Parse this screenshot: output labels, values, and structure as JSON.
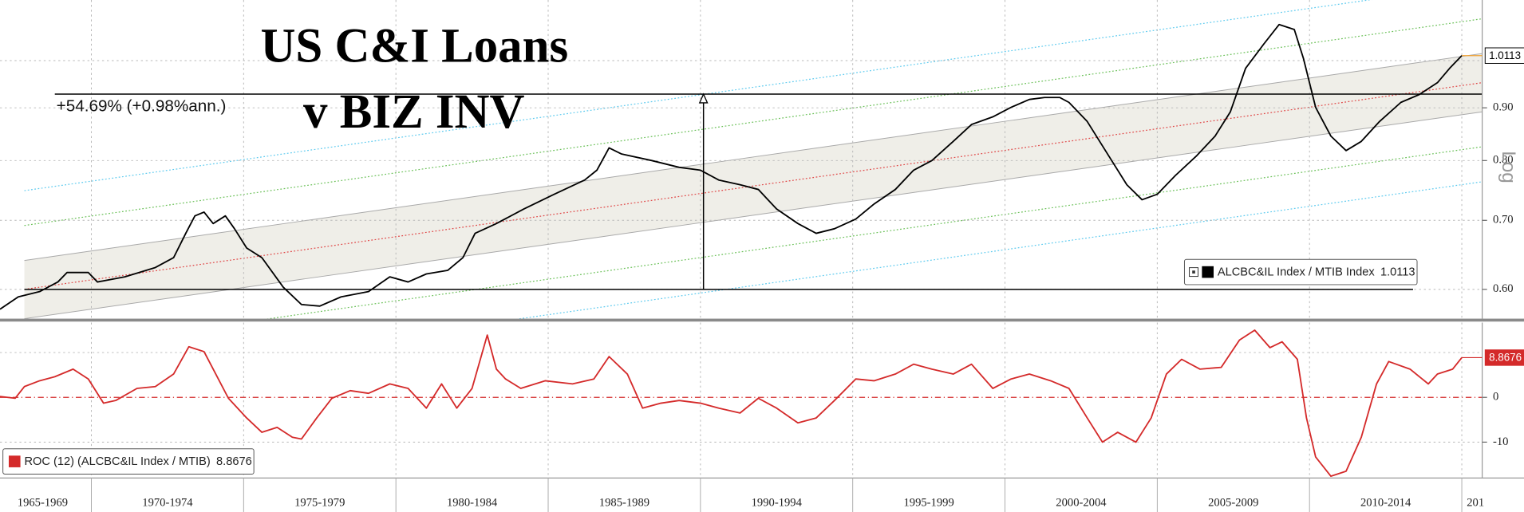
{
  "chart_data": [
    {
      "type": "line",
      "title": [
        "US C&I Loans",
        "v BIZ INV"
      ],
      "log": true,
      "yscale_label": "Log",
      "xlim": [
        1967,
        2015.67
      ],
      "ylim": [
        0.562,
        1.145
      ],
      "yticks": [
        {
          "value": 0.6,
          "label": "0.60"
        },
        {
          "value": 0.7,
          "label": "0.70"
        },
        {
          "value": 0.8,
          "label": "0.80"
        },
        {
          "value": 0.9,
          "label": "0.90"
        }
      ],
      "ygrid": [
        0.6,
        0.7,
        0.8,
        0.9,
        1.0
      ],
      "xgrid": [
        1970,
        1975,
        1980,
        1985,
        1990,
        1995,
        2000,
        2005,
        2010,
        2015
      ],
      "grid": true,
      "legend": "lower right",
      "x": [
        1967.0,
        1967.6,
        1968.3,
        1968.9,
        1969.2,
        1969.9,
        1970.2,
        1971.1,
        1972.1,
        1972.7,
        1973.1,
        1973.4,
        1973.7,
        1974.0,
        1974.4,
        1974.7,
        1975.1,
        1975.6,
        1976.3,
        1976.9,
        1977.5,
        1978.2,
        1979.1,
        1979.8,
        1980.4,
        1981.0,
        1981.7,
        1982.2,
        1982.6,
        1983.3,
        1984.2,
        1985.2,
        1986.2,
        1986.6,
        1987.0,
        1987.4,
        1988.4,
        1989.3,
        1990.0,
        1990.6,
        1991.3,
        1991.9,
        1992.5,
        1993.2,
        1993.8,
        1994.4,
        1995.1,
        1995.7,
        1996.4,
        1997.0,
        1997.6,
        1998.3,
        1998.9,
        1999.6,
        2000.2,
        2000.8,
        2001.3,
        2001.8,
        2002.1,
        2002.7,
        2003.4,
        2004.0,
        2004.5,
        2005.0,
        2005.6,
        2006.3,
        2006.9,
        2007.4,
        2007.9,
        2008.5,
        2009.0,
        2009.5,
        2009.8,
        2010.2,
        2010.7,
        2011.2,
        2011.7,
        2012.3,
        2013.0,
        2013.6,
        2014.2,
        2014.6,
        2015.0
      ],
      "series": [
        {
          "name": "ALCBC&IL Index / MTIB Index",
          "color": "#000000",
          "values": [
            0.574,
            0.59,
            0.597,
            0.61,
            0.623,
            0.623,
            0.61,
            0.617,
            0.63,
            0.644,
            0.68,
            0.707,
            0.713,
            0.695,
            0.707,
            0.687,
            0.658,
            0.644,
            0.603,
            0.58,
            0.578,
            0.59,
            0.597,
            0.617,
            0.61,
            0.621,
            0.626,
            0.644,
            0.68,
            0.695,
            0.718,
            0.742,
            0.766,
            0.783,
            0.823,
            0.812,
            0.8,
            0.788,
            0.783,
            0.766,
            0.758,
            0.75,
            0.718,
            0.695,
            0.68,
            0.687,
            0.702,
            0.726,
            0.75,
            0.783,
            0.8,
            0.835,
            0.867,
            0.882,
            0.901,
            0.917,
            0.921,
            0.921,
            0.911,
            0.873,
            0.809,
            0.758,
            0.733,
            0.742,
            0.774,
            0.809,
            0.845,
            0.892,
            0.983,
            1.038,
            1.084,
            1.072,
            1.005,
            0.901,
            0.845,
            0.818,
            0.835,
            0.873,
            0.911,
            0.927,
            0.952,
            0.983,
            1.0113
          ]
        }
      ],
      "channel": {
        "x": [
          1967.8,
          2015.67
        ],
        "center": {
          "color": "#e04848",
          "values": [
            0.6,
            0.952
          ]
        },
        "band": {
          "color": "#efeee8",
          "edge": "#a9a9a9",
          "upper": [
            0.64,
            1.016
          ],
          "lower": [
            0.562,
            0.892
          ]
        },
        "lines": [
          {
            "color": "#6cc15a",
            "values": [
              0.692,
              1.098
            ]
          },
          {
            "color": "#6cc15a",
            "values": [
              0.52,
              0.825
            ]
          },
          {
            "color": "#5fcbef",
            "values": [
              0.748,
              1.187
            ]
          },
          {
            "color": "#5fcbef",
            "values": [
              0.48,
              0.763
            ]
          }
        ]
      },
      "hlines": [
        {
          "value": 0.928,
          "x": [
            1968.8,
            2015.67
          ]
        },
        {
          "value": 0.6,
          "x": [
            1967.8,
            2013.4
          ]
        }
      ],
      "measure": {
        "x": 1990.1,
        "from": 0.6,
        "to": 0.928,
        "label": "+54.69% (+0.98%ann.)"
      },
      "tag_color": "#f0a030"
    },
    {
      "type": "line",
      "xlim": [
        1967,
        2015.67
      ],
      "ylim": [
        -18,
        16.7
      ],
      "yticks": [
        0,
        -10
      ],
      "ygrid": [
        10,
        -10
      ],
      "zeroline": {
        "value": 0,
        "color": "#d42a2a"
      },
      "xgrid": [
        1970,
        1975,
        1980,
        1985,
        1990,
        1995,
        2000,
        2005,
        2010,
        2015
      ],
      "xticks": [
        {
          "value": 1968.4,
          "label": "1965-1969"
        },
        {
          "value": 1972.5,
          "label": "1970-1974"
        },
        {
          "value": 1977.5,
          "label": "1975-1979"
        },
        {
          "value": 1982.5,
          "label": "1980-1984"
        },
        {
          "value": 1987.5,
          "label": "1985-1989"
        },
        {
          "value": 1992.5,
          "label": "1990-1994"
        },
        {
          "value": 1997.5,
          "label": "1995-1999"
        },
        {
          "value": 2002.5,
          "label": "2000-2004"
        },
        {
          "value": 2007.5,
          "label": "2005-2009"
        },
        {
          "value": 2012.5,
          "label": "2010-2014"
        },
        {
          "value": 2015.45,
          "label": "201"
        }
      ],
      "grid": true,
      "legend": "lower left",
      "x": [
        1967.0,
        1967.5,
        1967.8,
        1968.3,
        1968.8,
        1969.4,
        1969.9,
        1970.4,
        1970.8,
        1971.5,
        1972.1,
        1972.7,
        1973.2,
        1973.7,
        1974.0,
        1974.5,
        1975.1,
        1975.6,
        1976.1,
        1976.6,
        1976.9,
        1977.4,
        1977.9,
        1978.5,
        1979.1,
        1979.8,
        1980.4,
        1981.0,
        1981.5,
        1982.0,
        1982.5,
        1983.0,
        1983.3,
        1983.6,
        1984.1,
        1984.9,
        1985.8,
        1986.5,
        1987.0,
        1987.6,
        1988.1,
        1988.7,
        1989.3,
        1990.0,
        1990.6,
        1991.3,
        1991.9,
        1992.5,
        1993.2,
        1993.8,
        1994.4,
        1995.1,
        1995.7,
        1996.4,
        1997.0,
        1997.6,
        1998.3,
        1998.9,
        1999.6,
        2000.2,
        2000.8,
        2001.5,
        2002.1,
        2002.7,
        2003.2,
        2003.7,
        2004.3,
        2004.8,
        2005.3,
        2005.8,
        2006.4,
        2007.1,
        2007.7,
        2008.2,
        2008.7,
        2009.1,
        2009.6,
        2009.9,
        2010.2,
        2010.7,
        2011.2,
        2011.7,
        2012.2,
        2012.6,
        2013.3,
        2013.9,
        2014.2,
        2014.7,
        2015.0
      ],
      "series": [
        {
          "name": "ROC (12) (ALCBC&IL Index / MTIB)",
          "color": "#d42a2a",
          "values": [
            0.2,
            -0.2,
            2.4,
            3.7,
            4.6,
            6.3,
            4.1,
            -1.3,
            -0.7,
            2.0,
            2.4,
            5.2,
            11.3,
            10.2,
            6.3,
            -0.2,
            -4.6,
            -7.8,
            -6.7,
            -8.9,
            -9.3,
            -4.6,
            -0.2,
            1.5,
            0.9,
            3.0,
            2.0,
            -2.4,
            3.0,
            -2.4,
            2.0,
            13.9,
            6.3,
            4.1,
            2.0,
            3.7,
            3.0,
            4.1,
            9.1,
            5.2,
            -2.4,
            -1.3,
            -0.7,
            -1.3,
            -2.4,
            -3.5,
            -0.2,
            -2.4,
            -5.7,
            -4.6,
            -0.7,
            4.1,
            3.7,
            5.2,
            7.4,
            6.3,
            5.2,
            7.4,
            2.0,
            4.1,
            5.2,
            3.7,
            2.0,
            -4.6,
            -10.0,
            -7.8,
            -10.0,
            -4.6,
            5.2,
            8.5,
            6.3,
            6.7,
            12.8,
            15.0,
            11.1,
            12.4,
            8.5,
            -4.6,
            -13.3,
            -17.6,
            -16.5,
            -8.9,
            3.0,
            8.0,
            6.3,
            3.0,
            5.2,
            6.3,
            8.8676
          ]
        }
      ],
      "tag_color": "#d42a2a"
    }
  ]
}
